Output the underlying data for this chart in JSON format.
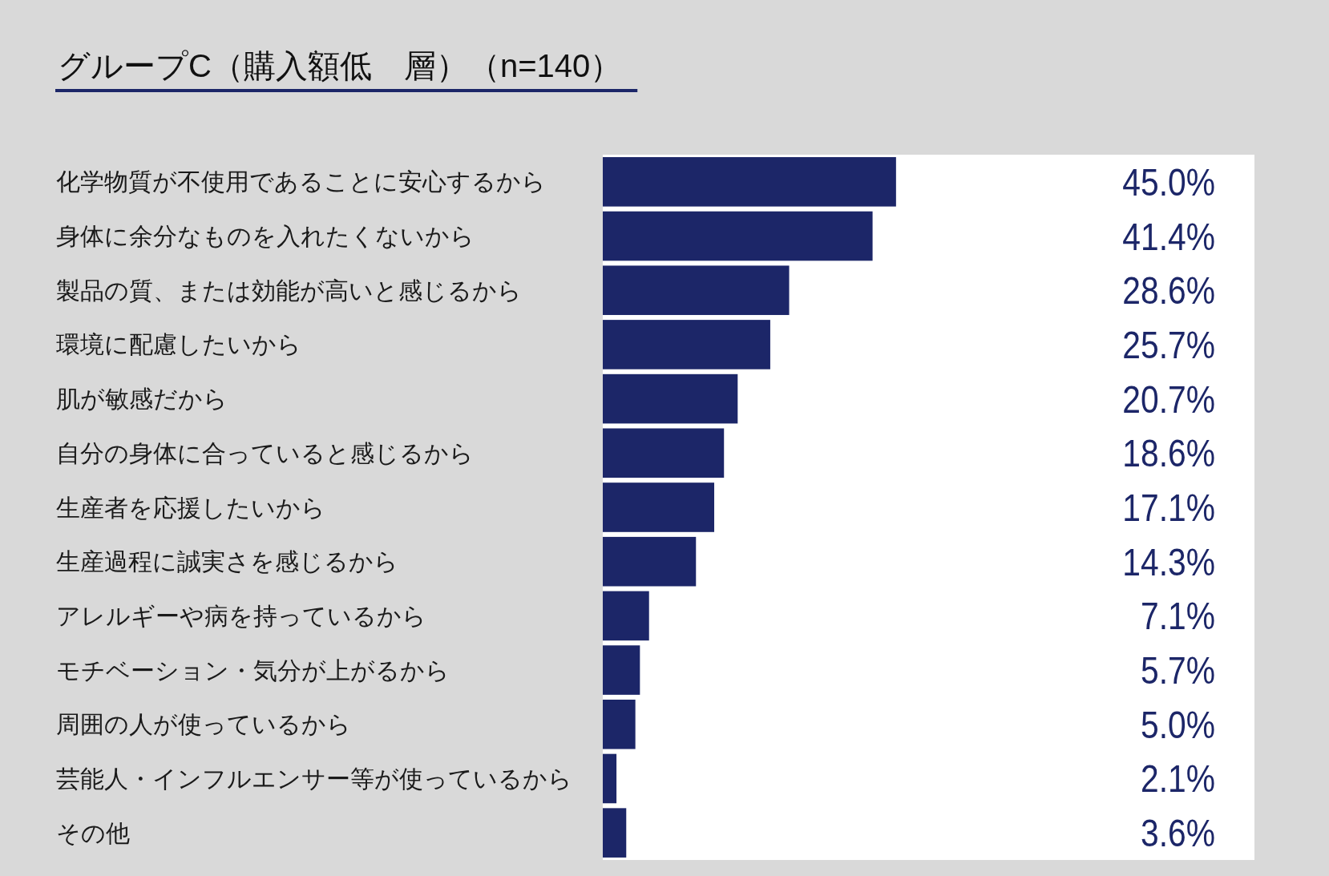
{
  "chart_data": {
    "type": "bar",
    "orientation": "horizontal",
    "title": "グループC（購入額低　層）（n=140）",
    "categories": [
      "化学物質が不使用であることに安心するから",
      "身体に余分なものを入れたくないから",
      "製品の質、または効能が高いと感じるから",
      "環境に配慮したいから",
      "肌が敏感だから",
      "自分の身体に合っていると感じるから",
      "生産者を応援したいから",
      "生産過程に誠実さを感じるから",
      "アレルギーや病を持っているから",
      "モチベーション・気分が上がるから",
      "周囲の人が使っているから",
      "芸能人・インフルエンサー等が使っているから",
      "その他"
    ],
    "values": [
      45.0,
      41.4,
      28.6,
      25.7,
      20.7,
      18.6,
      17.1,
      14.3,
      7.1,
      5.7,
      5.0,
      2.1,
      3.6
    ],
    "value_labels": [
      "45.0%",
      "41.4%",
      "28.6%",
      "25.7%",
      "20.7%",
      "18.6%",
      "17.1%",
      "14.3%",
      "7.1%",
      "5.7%",
      "5.0%",
      "2.1%",
      "3.6%"
    ],
    "color": "#1c2668",
    "xlim": [
      0,
      100
    ],
    "tick_labels": "y"
  }
}
